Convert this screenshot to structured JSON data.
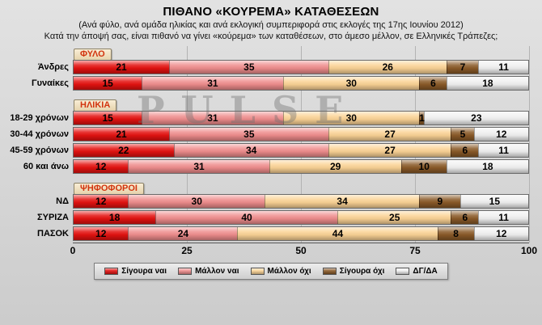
{
  "title": "ΠΙΘΑΝΟ «ΚΟΥΡΕΜΑ» ΚΑΤΑΘΕΣΕΩΝ",
  "subtitle1": "(Ανά φύλο, ανά ομάδα ηλικίας και ανά εκλογική συμπεριφορά στις εκλογές της 17ης Ιουνίου 2012)",
  "subtitle2": "Κατά την άποψή σας, είναι πιθανό να γίνει «κούρεμα» των καταθέσεων, στο άμεσο μέλλον, σε Ελληνικές Τράπεζες;",
  "watermark": "PULSE",
  "chart_data": {
    "type": "bar",
    "orientation": "horizontal",
    "stacked": true,
    "xlim": [
      0,
      100
    ],
    "x_ticks": [
      "0",
      "25",
      "50",
      "75",
      "100"
    ],
    "gridlines_at": [
      25,
      50,
      75,
      100
    ],
    "legend_position": "bottom",
    "series_names": [
      "Σίγουρα ναι",
      "Μάλλον ναι",
      "Μάλλον όχι",
      "Σίγουρα όχι",
      "ΔΓ/ΔΑ"
    ],
    "series_colors": [
      "#e41210",
      "#ef8d8d",
      "#fbd395",
      "#8a5a28",
      "#f0f0f0"
    ],
    "groups": [
      {
        "header": "ΦΥΛΟ",
        "rows": [
          {
            "label": "Άνδρες",
            "values": [
              21,
              35,
              26,
              7,
              11
            ]
          },
          {
            "label": "Γυναίκες",
            "values": [
              15,
              31,
              30,
              6,
              18
            ]
          }
        ]
      },
      {
        "header": "ΗΛΙΚΙΑ",
        "rows": [
          {
            "label": "18-29 χρόνων",
            "values": [
              15,
              31,
              30,
              1,
              23
            ]
          },
          {
            "label": "30-44 χρόνων",
            "values": [
              21,
              35,
              27,
              5,
              12
            ]
          },
          {
            "label": "45-59 χρόνων",
            "values": [
              22,
              34,
              27,
              6,
              11
            ]
          },
          {
            "label": "60 και άνω",
            "values": [
              12,
              31,
              29,
              10,
              18
            ]
          }
        ]
      },
      {
        "header": "ΨΗΦΟΦΟΡΟΙ",
        "rows": [
          {
            "label": "ΝΔ",
            "values": [
              12,
              30,
              34,
              9,
              15
            ]
          },
          {
            "label": "ΣΥΡΙΖΑ",
            "values": [
              18,
              40,
              25,
              6,
              11
            ]
          },
          {
            "label": "ΠΑΣΟΚ",
            "values": [
              12,
              24,
              44,
              8,
              12
            ]
          }
        ]
      }
    ]
  }
}
